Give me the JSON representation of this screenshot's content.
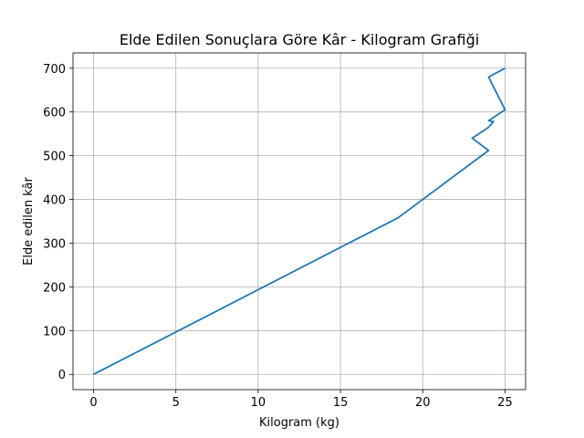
{
  "chart_data": {
    "type": "line",
    "title": "Elde Edilen Sonuçlara Göre Kâr - Kilogram Grafiği",
    "xlabel": "Kilogram (kg)",
    "ylabel": "Elde edilen kâr",
    "xlim": [
      -1.25,
      26.25
    ],
    "ylim": [
      -35,
      735
    ],
    "xticks": [
      0,
      5,
      10,
      15,
      20,
      25
    ],
    "yticks": [
      0,
      100,
      200,
      300,
      400,
      500,
      600,
      700
    ],
    "grid": true,
    "colors": {
      "line": "#1f77b4",
      "grid": "#b0b0b0"
    },
    "series": [
      {
        "x": [
          0,
          18.5,
          24,
          23,
          24,
          24.3,
          24,
          25,
          24,
          25
        ],
        "y": [
          0,
          358,
          512,
          540,
          565,
          578,
          580,
          605,
          680,
          700
        ]
      }
    ]
  }
}
